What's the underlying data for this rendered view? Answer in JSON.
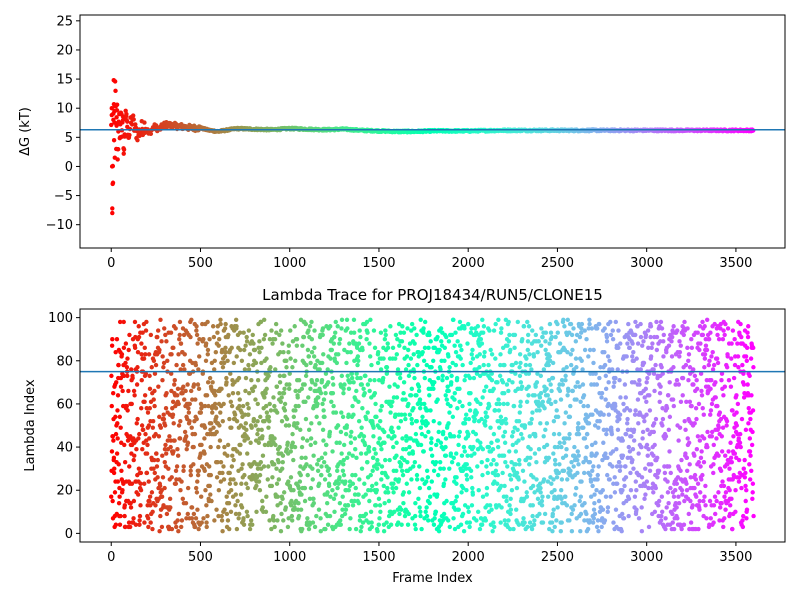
{
  "chart_data": [
    {
      "type": "scatter",
      "title": "",
      "xlabel": "",
      "ylabel": "ΔG (kT)",
      "xlim": [
        -175,
        3775
      ],
      "ylim": [
        -14,
        26
      ],
      "xticks": [
        0,
        500,
        1000,
        1500,
        2000,
        2500,
        3000,
        3500
      ],
      "yticks": [
        -10,
        -5,
        0,
        5,
        10,
        15,
        20,
        25
      ],
      "hline": 6.3,
      "frames": 3600,
      "colormap": "rainbow (red at frame 0 to violet at last frame)",
      "line_color": "#1f77b4",
      "series": [
        {
          "points": [
            [
              3,
              10
            ],
            [
              5,
              0
            ],
            [
              6,
              -8
            ],
            [
              8,
              -3
            ],
            [
              10,
              -2.8
            ],
            [
              12,
              8
            ],
            [
              14,
              14.8
            ],
            [
              16,
              4.5
            ],
            [
              18,
              9.5
            ],
            [
              20,
              1.5
            ],
            [
              22,
              14.6
            ],
            [
              25,
              10.3
            ],
            [
              28,
              3
            ],
            [
              30,
              7
            ],
            [
              33,
              10.6
            ],
            [
              36,
              1.2
            ],
            [
              40,
              6
            ],
            [
              45,
              9
            ],
            [
              50,
              5
            ],
            [
              55,
              7.5
            ],
            [
              60,
              6.2
            ],
            [
              65,
              8.6
            ],
            [
              70,
              2.2
            ],
            [
              75,
              5.5
            ],
            [
              80,
              8.4
            ],
            [
              85,
              9
            ],
            [
              90,
              6.8
            ],
            [
              100,
              5.3
            ],
            [
              110,
              7.5
            ],
            [
              120,
              8.2
            ],
            [
              130,
              6.5
            ],
            [
              150,
              5.5
            ],
            [
              170,
              6.5
            ],
            [
              190,
              7.2
            ],
            [
              210,
              5.6
            ],
            [
              240,
              6.8
            ],
            [
              270,
              6.4
            ],
            [
              300,
              7.2
            ],
            [
              350,
              7
            ],
            [
              400,
              6.8
            ],
            [
              450,
              6.6
            ],
            [
              500,
              6.6
            ],
            [
              550,
              6.2
            ],
            [
              600,
              6.0
            ],
            [
              700,
              6.5
            ],
            [
              800,
              6.4
            ],
            [
              900,
              6.3
            ],
            [
              1000,
              6.5
            ],
            [
              1100,
              6.4
            ],
            [
              1200,
              6.3
            ],
            [
              1300,
              6.4
            ],
            [
              1400,
              6.2
            ],
            [
              1500,
              6.1
            ],
            [
              1600,
              6.0
            ],
            [
              1700,
              6.0
            ],
            [
              1800,
              6.1
            ],
            [
              1900,
              6.1
            ],
            [
              2000,
              6.1
            ],
            [
              2200,
              6.2
            ],
            [
              2400,
              6.2
            ],
            [
              2600,
              6.2
            ],
            [
              2800,
              6.2
            ],
            [
              3000,
              6.2
            ],
            [
              3200,
              6.2
            ],
            [
              3400,
              6.2
            ],
            [
              3600,
              6.2
            ]
          ]
        }
      ]
    },
    {
      "type": "scatter",
      "title": "Lambda Trace for PROJ18434/RUN5/CLONE15",
      "xlabel": "Frame Index",
      "ylabel": "Lambda Index",
      "xlim": [
        -175,
        3775
      ],
      "ylim": [
        -4,
        104
      ],
      "xticks": [
        0,
        500,
        1000,
        1500,
        2000,
        2500,
        3000,
        3500
      ],
      "yticks": [
        0,
        20,
        40,
        60,
        80,
        100
      ],
      "hline": 75,
      "frames": 3600,
      "lambda_range": [
        1,
        99
      ],
      "colormap": "rainbow (red at frame 0 to violet at last frame)",
      "line_color": "#1f77b4"
    }
  ]
}
